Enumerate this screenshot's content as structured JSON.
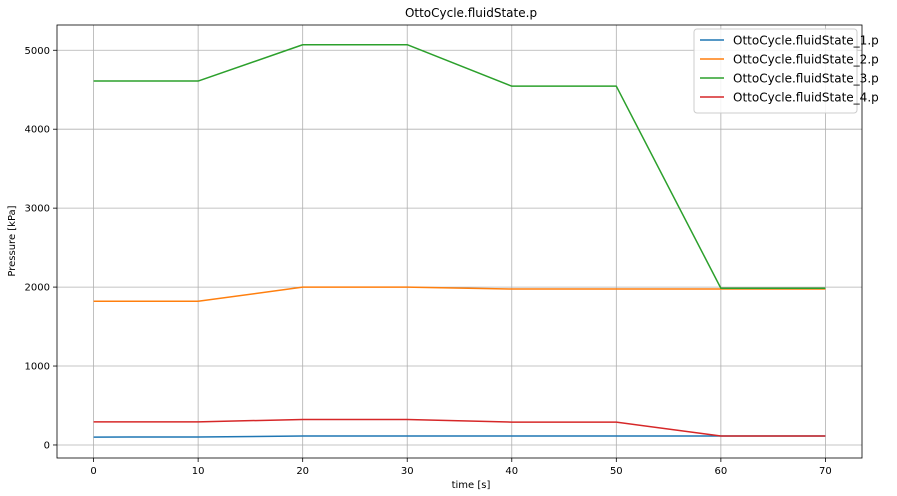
{
  "chart_data": {
    "type": "line",
    "title": "OttoCycle.fluidState.p",
    "xlabel": "time [s]",
    "ylabel": "Pressure [kPa]",
    "xlim": [
      -3.5,
      73.5
    ],
    "ylim": [
      -165,
      5320
    ],
    "xticks": [
      0,
      10,
      20,
      30,
      40,
      50,
      60,
      70
    ],
    "yticks": [
      0,
      1000,
      2000,
      3000,
      4000,
      5000
    ],
    "grid": true,
    "legend_position": "top-right",
    "x": [
      0,
      10,
      20,
      30,
      40,
      50,
      60,
      70
    ],
    "series": [
      {
        "name": "OttoCycle.fluidState_1.p",
        "color": "#1f77b4",
        "values": [
          100,
          101,
          113,
          113,
          113,
          113,
          113,
          113
        ]
      },
      {
        "name": "OttoCycle.fluidState_2.p",
        "color": "#ff7f0e",
        "values": [
          1820,
          1820,
          2000,
          2000,
          1975,
          1975,
          1975,
          1975
        ]
      },
      {
        "name": "OttoCycle.fluidState_3.p",
        "color": "#2ca02c",
        "values": [
          4610,
          4610,
          5070,
          5070,
          4545,
          4545,
          1985,
          1985
        ]
      },
      {
        "name": "OttoCycle.fluidState_4.p",
        "color": "#d62728",
        "values": [
          293,
          293,
          323,
          323,
          290,
          290,
          113,
          113
        ]
      }
    ]
  }
}
